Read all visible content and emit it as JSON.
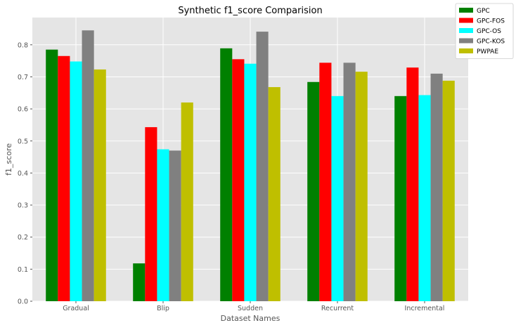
{
  "chart_data": {
    "type": "bar",
    "title": "Synthetic f1_score Comparision",
    "xlabel": "Dataset Names",
    "ylabel": "f1_score",
    "categories": [
      "Gradual",
      "Blip",
      "Sudden",
      "Recurrent",
      "Incremental"
    ],
    "ylim": [
      0,
      0.885
    ],
    "yticks": [
      "0.0",
      "0.1",
      "0.2",
      "0.3",
      "0.4",
      "0.5",
      "0.6",
      "0.7",
      "0.8"
    ],
    "grid": true,
    "legend_position": "top-right (outside plot)",
    "series": [
      {
        "name": "GPC",
        "color": "#008000",
        "values": [
          0.785,
          0.118,
          0.789,
          0.684,
          0.64
        ]
      },
      {
        "name": "GPC-FOS",
        "color": "#ff0000",
        "values": [
          0.765,
          0.543,
          0.755,
          0.744,
          0.729
        ]
      },
      {
        "name": "GPC-OS",
        "color": "#00ffff",
        "values": [
          0.748,
          0.474,
          0.741,
          0.64,
          0.643
        ]
      },
      {
        "name": "GPC-KOS",
        "color": "#808080",
        "values": [
          0.845,
          0.47,
          0.841,
          0.744,
          0.71
        ]
      },
      {
        "name": "PWPAE",
        "color": "#bfbf00",
        "values": [
          0.723,
          0.62,
          0.668,
          0.716,
          0.688
        ]
      }
    ]
  }
}
